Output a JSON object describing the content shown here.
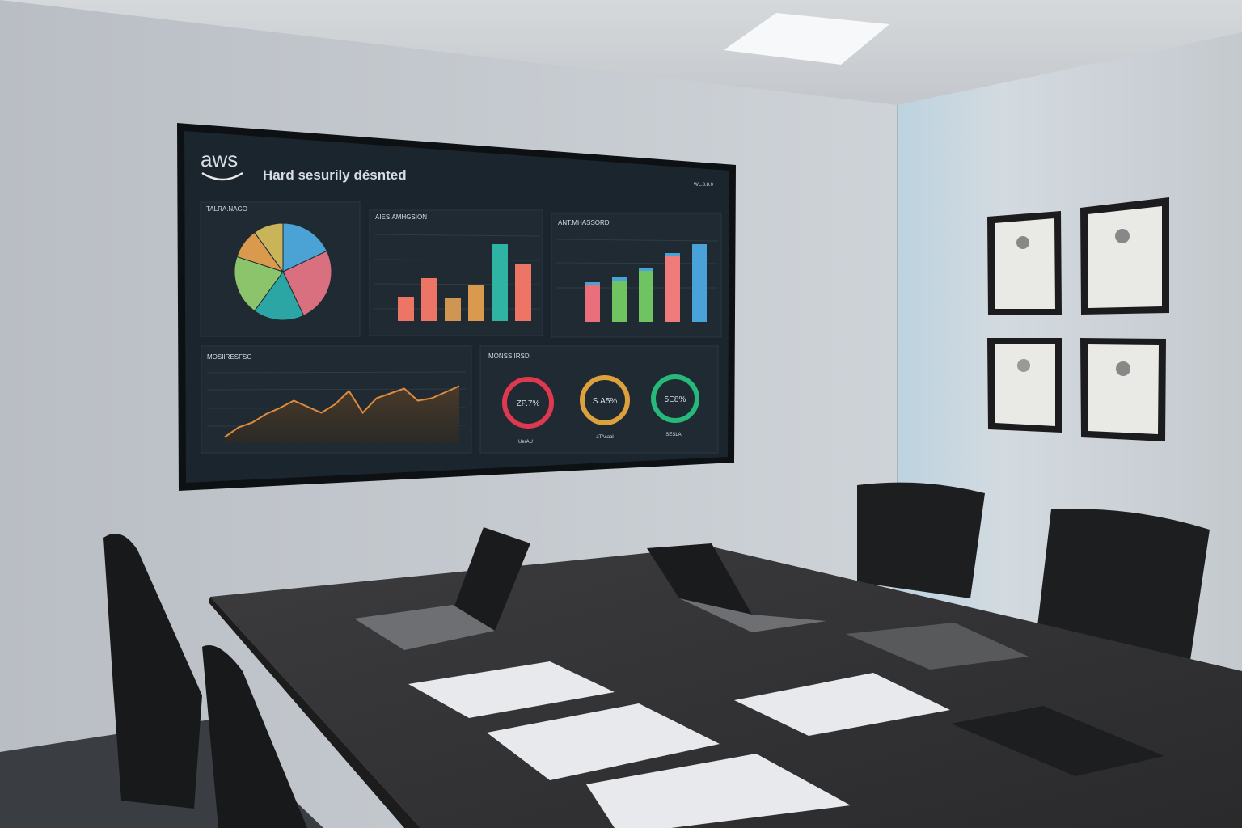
{
  "screen": {
    "logo": "aws",
    "title": "Hard sesurily désnted",
    "corner_label": "WL.8.8.0",
    "panels": {
      "pie": {
        "title": "TALRA.NAGO",
        "colors": [
          "#4aa3d4",
          "#d9707f",
          "#2ca6a4",
          "#8cc46c",
          "#d99a4e",
          "#c9b45a"
        ],
        "values": [
          18,
          25,
          17,
          20,
          10,
          10
        ]
      },
      "bars1": {
        "title": "AIES.AMHGSION",
        "values": [
          30,
          53,
          29,
          45,
          95,
          70
        ],
        "colors": [
          "#ec7565",
          "#ec7565",
          "#cf9553",
          "#d99a4e",
          "#2fb3a3",
          "#ec7565"
        ]
      },
      "bars2": {
        "title": "ANT.MHASSORD",
        "values": [
          49,
          55,
          67,
          85,
          96
        ],
        "colors": [
          "#e9707a",
          "#6fc461",
          "#6fc461",
          "#ef7b7b",
          "#4aa3d8"
        ],
        "cap_color": "#4aa3d8"
      },
      "line": {
        "title": "MOSIIRESFSG",
        "color": "#e08a3c",
        "values": [
          5,
          13,
          17,
          24,
          29,
          35,
          30,
          25,
          32,
          43,
          25,
          37,
          41,
          45,
          35,
          37,
          42,
          47
        ]
      },
      "gauges": {
        "title": "MONSSIIRSD",
        "items": [
          {
            "value": "ZP.7%",
            "label": "UerAU",
            "color": "#e0384e"
          },
          {
            "value": "S.A5%",
            "label": "aTAcaal",
            "color": "#dca13c"
          },
          {
            "value": "5E8%",
            "label": "SESLA",
            "color": "#27b97a"
          }
        ]
      }
    }
  }
}
